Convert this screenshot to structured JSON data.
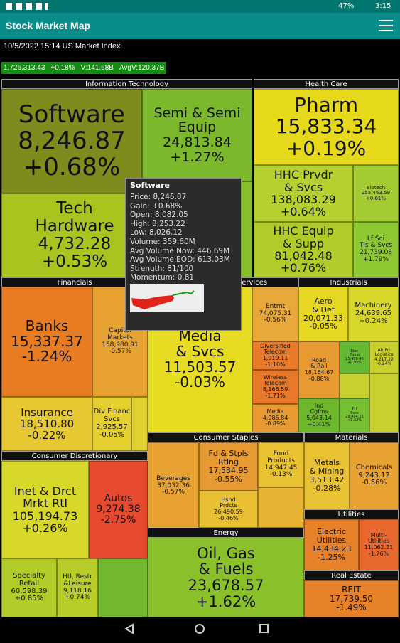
{
  "status_bar": {
    "battery": "47%",
    "time": "3:15"
  },
  "app_bar": {
    "title": "Stock Market Map"
  },
  "info": "10/5/2022 15:14 US Market Index",
  "index_bar": [
    "1,726,313.43",
    "+0.18%",
    "V:141.68B",
    "AvgV:120.37B"
  ],
  "sectors": [
    "Information Technology",
    "Health Care",
    "Financials",
    "Communication Services",
    "Industrials",
    "Consumer Discretionary",
    "Consumer Staples",
    "Materials",
    "Utilities",
    "Energy",
    "Real Estate"
  ],
  "tiles": [
    {
      "color": "#7d8c1c",
      "lines": [
        "Software",
        "8,246.87",
        "+0.68%"
      ]
    },
    {
      "color": "#7cb82c",
      "lines": [
        "Semi & Semi",
        "Equip",
        "24,813.84",
        "+1.27%"
      ]
    },
    {
      "color": "#a9c41f",
      "lines": [
        "Tech",
        "Hardware",
        "4,732.28",
        "+0.53%"
      ]
    },
    {
      "color": "#e6d81b",
      "lines": [
        "Pharm",
        "15,833.34",
        "+0.19%"
      ]
    },
    {
      "color": "#b6d030",
      "lines": [
        "HHC Prvdr",
        "& Svcs",
        "138,083.29",
        "+0.64%"
      ]
    },
    {
      "color": "#a2cc32",
      "lines": [
        "Biotech",
        "255,463.59",
        "+0.81%"
      ]
    },
    {
      "color": "#b0cc2a",
      "lines": [
        "HHC Equip",
        "& Supp",
        "81,042.48",
        "+0.76%"
      ]
    },
    {
      "color": "#8ec832",
      "lines": [
        "Lf Sci",
        "Tls & Svcs",
        "21,739.08",
        "+1.79%"
      ]
    },
    {
      "color": "#e87c22",
      "lines": [
        "Banks",
        "15,337.37",
        "-1.24%"
      ]
    },
    {
      "color": "#e8a232",
      "lines": [
        "Capital",
        "Markets",
        "158,980.91",
        "-0.57%"
      ]
    },
    {
      "color": "#e8c832",
      "lines": [
        "Insurance",
        "18,510.80",
        "-0.22%"
      ]
    },
    {
      "color": "#e6d030",
      "lines": [
        "Div Financ",
        "Svcs",
        "2,925.57",
        "-0.05%"
      ]
    },
    {
      "color": "#e8dc22",
      "lines": [
        "Media",
        "& Svcs",
        "11,503.57",
        "-0.03%"
      ]
    },
    {
      "color": "#e8a83a",
      "lines": [
        "Entmt",
        "74,075.31",
        "-0.56%"
      ]
    },
    {
      "color": "#e87a2a",
      "lines": [
        "Diversified",
        "Telecom",
        "1,919.11",
        "-1.10%"
      ]
    },
    {
      "color": "#e8782a",
      "lines": [
        "Wireless",
        "Telecom",
        "8,166.59",
        "-1.71%"
      ]
    },
    {
      "color": "#e89a32",
      "lines": [
        "Media",
        "4,985.84",
        "-0.89%"
      ]
    },
    {
      "color": "#e6d822",
      "lines": [
        "Aero",
        "& Def",
        "20,071.33",
        "-0.05%"
      ]
    },
    {
      "color": "#d8d82a",
      "lines": [
        "Machinery",
        "24,639.65",
        "+0.24%"
      ]
    },
    {
      "color": "#e89a32",
      "lines": [
        "Road",
        "& Rail",
        "18,164.67",
        "-0.88%"
      ]
    },
    {
      "color": "#64b832",
      "lines": [
        "Elec",
        "Equip",
        "25,466.46",
        "+0.95%"
      ]
    },
    {
      "color": "#cad02a",
      "lines": [
        "Air Frt",
        "Logistics",
        "4,217.22",
        "-0.24%"
      ]
    },
    {
      "color": "#6cb82a",
      "lines": [
        "Ind",
        "Cglms",
        "5,043.14",
        "+0.41%"
      ]
    },
    {
      "color": "#74c032",
      "lines": [
        "Prf",
        "Svcs",
        "29,494.16",
        "+1.32%"
      ]
    },
    {
      "color": "#e8a232",
      "lines": [
        "Beverages",
        "37,032.36",
        "-0.57%"
      ]
    },
    {
      "color": "#e89a32",
      "lines": [
        "Fd & Stpls",
        "Rtlng",
        "17,534.95",
        "-0.55%"
      ]
    },
    {
      "color": "#e8c032",
      "lines": [
        "Hshd",
        "Prdcts",
        "26,490.59",
        "-0.46%"
      ]
    },
    {
      "color": "#e8c232",
      "lines": [
        "Food",
        "Products",
        "14,947.45",
        "-0.13%"
      ]
    },
    {
      "color": "#e8c232",
      "lines": [
        "Metals",
        "& Mining",
        "3,513.42",
        "-0.28%"
      ]
    },
    {
      "color": "#e8a232",
      "lines": [
        "Chemicals",
        "9,243.12",
        "-0.56%"
      ]
    },
    {
      "color": "#e8822a",
      "lines": [
        "Electric",
        "Utilities",
        "14,434.23",
        "-1.25%"
      ]
    },
    {
      "color": "#e8682f",
      "lines": [
        "Multi-",
        "Utilities",
        "11,062.21",
        "-1.76%"
      ]
    },
    {
      "color": "#d8d82a",
      "lines": [
        "Inet & Drct",
        "Mrkt Rtl",
        "105,194.73",
        "+0.26%"
      ]
    },
    {
      "color": "#e84a30",
      "lines": [
        "Autos",
        "9,274.38",
        "-2.75%"
      ]
    },
    {
      "color": "#b2cc2a",
      "lines": [
        "Specialty",
        "Retail",
        "60,598.39",
        "+0.85%"
      ]
    },
    {
      "color": "#b8cc2a",
      "lines": [
        "Htl, Restr",
        "&Leisure",
        "9,118.16",
        "+0.74%"
      ]
    },
    {
      "color": "#8ac02a",
      "lines": [
        "Oil, Gas",
        "& Fuels",
        "23,678.57",
        "+1.62%"
      ]
    },
    {
      "color": "#e8822a",
      "lines": [
        "REIT",
        "17,739.50",
        "-1.49%"
      ]
    }
  ],
  "popup": {
    "title": "Software",
    "lines": [
      "Price: 8,246.87",
      "Gain: +0.68%",
      "Open: 8,082.05",
      "High: 8,253.22",
      "Low: 8,026.12",
      "Volume: 359.60M",
      "Avg Volume Now: 446.69M",
      "Avg Volume EOD: 613.03M",
      "Strength: 81/100",
      "Momentum: 0.81"
    ]
  }
}
